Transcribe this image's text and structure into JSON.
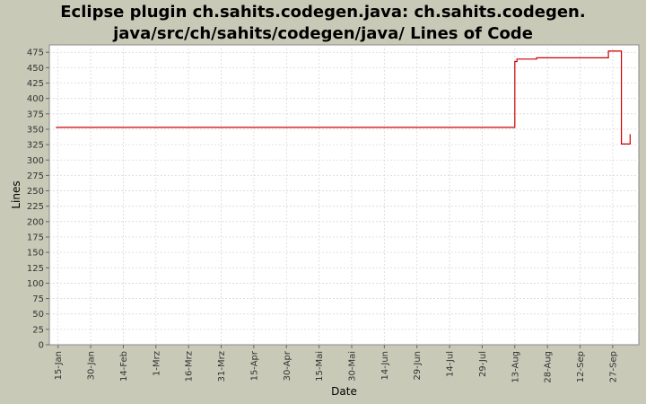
{
  "chart_data": {
    "type": "line",
    "title_line1": "Eclipse plugin ch.sahits.codegen.java: ch.sahits.codegen.",
    "title_line2": "java/src/ch/sahits/codegen/java/ Lines of Code",
    "xlabel": "Date",
    "ylabel": "Lines",
    "ylim": [
      0,
      487
    ],
    "yticks": [
      0,
      25,
      50,
      75,
      100,
      125,
      150,
      175,
      200,
      225,
      250,
      275,
      300,
      325,
      350,
      375,
      400,
      425,
      450,
      475
    ],
    "xlim": [
      "2009-01-11",
      "2009-10-09"
    ],
    "xticks": [
      {
        "date": "2009-01-15",
        "label": "15-Jan"
      },
      {
        "date": "2009-01-30",
        "label": "30-Jan"
      },
      {
        "date": "2009-02-14",
        "label": "14-Feb"
      },
      {
        "date": "2009-03-01",
        "label": "1-Mrz"
      },
      {
        "date": "2009-03-16",
        "label": "16-Mrz"
      },
      {
        "date": "2009-03-31",
        "label": "31-Mrz"
      },
      {
        "date": "2009-04-15",
        "label": "15-Apr"
      },
      {
        "date": "2009-04-30",
        "label": "30-Apr"
      },
      {
        "date": "2009-05-15",
        "label": "15-Mai"
      },
      {
        "date": "2009-05-30",
        "label": "30-Mai"
      },
      {
        "date": "2009-06-14",
        "label": "14-Jun"
      },
      {
        "date": "2009-06-29",
        "label": "29-Jun"
      },
      {
        "date": "2009-07-14",
        "label": "14-Jul"
      },
      {
        "date": "2009-07-29",
        "label": "29-Jul"
      },
      {
        "date": "2009-08-13",
        "label": "13-Aug"
      },
      {
        "date": "2009-08-28",
        "label": "28-Aug"
      },
      {
        "date": "2009-09-12",
        "label": "12-Sep"
      },
      {
        "date": "2009-09-27",
        "label": "27-Sep"
      }
    ],
    "grid": true,
    "step": true,
    "series": [
      {
        "color": "#cc0000",
        "points": [
          {
            "x": "2009-01-14",
            "y": 353
          },
          {
            "x": "2009-08-13",
            "y": 353
          },
          {
            "x": "2009-08-13",
            "y": 460
          },
          {
            "x": "2009-08-14",
            "y": 460
          },
          {
            "x": "2009-08-14",
            "y": 464
          },
          {
            "x": "2009-08-23",
            "y": 464
          },
          {
            "x": "2009-08-23",
            "y": 466
          },
          {
            "x": "2009-09-25",
            "y": 466
          },
          {
            "x": "2009-09-25",
            "y": 477
          },
          {
            "x": "2009-10-01",
            "y": 477
          },
          {
            "x": "2009-10-01",
            "y": 326
          },
          {
            "x": "2009-10-05",
            "y": 326
          },
          {
            "x": "2009-10-05",
            "y": 342
          }
        ]
      }
    ]
  },
  "colors": {
    "page_bg": "#c9c9b8",
    "plot_bg": "#ffffff",
    "grid": "#d8d8d8",
    "series": "#cc0000"
  }
}
